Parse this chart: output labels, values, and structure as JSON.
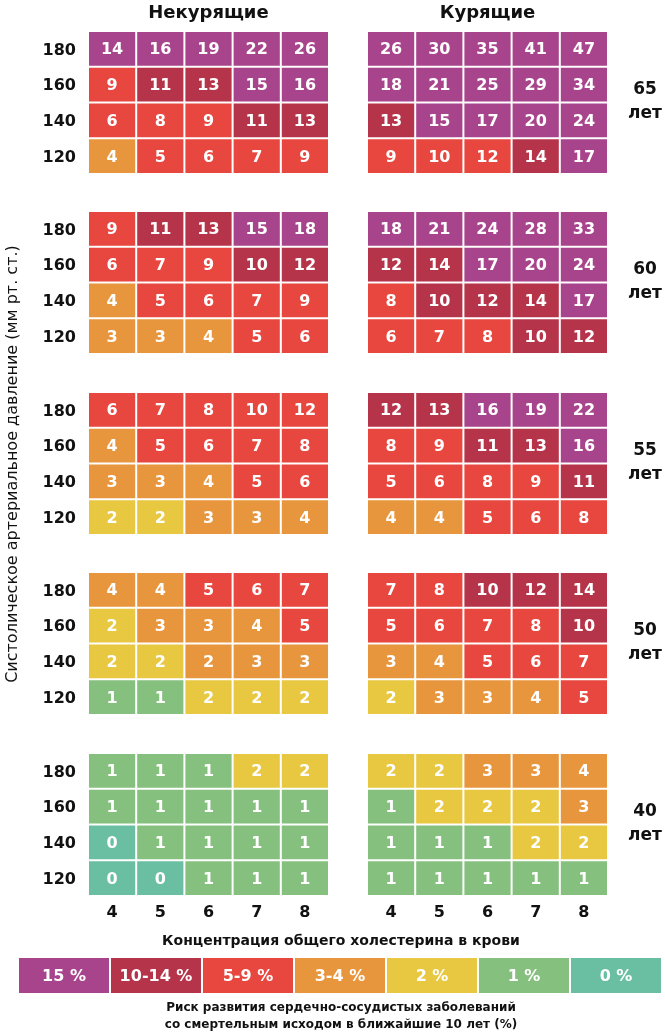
{
  "chart_data": [
    {
      "type": "heatmap",
      "title": "Некурящие",
      "categories": [
        "4",
        "5",
        "6",
        "7",
        "8"
      ],
      "y_categories": [
        "180",
        "160",
        "140",
        "120"
      ],
      "tick_labels": "y",
      "data_labels": true,
      "cells": [
        [
          14,
          16,
          19,
          22,
          26
        ],
        [
          9,
          11,
          13,
          15,
          16
        ],
        [
          6,
          8,
          9,
          11,
          13
        ],
        [
          4,
          5,
          6,
          7,
          9
        ]
      ],
      "colors": [
        [
          "#a8448c",
          "#a8448c",
          "#a8448c",
          "#a8448c",
          "#a8448c"
        ],
        [
          "#e8473f",
          "#b5344a",
          "#b5344a",
          "#a8448c",
          "#a8448c"
        ],
        [
          "#e8473f",
          "#e8473f",
          "#e8473f",
          "#b5344a",
          "#b5344a"
        ],
        [
          "#e8963e",
          "#e8473f",
          "#e8473f",
          "#e8473f",
          "#e8473f"
        ]
      ]
    },
    {
      "type": "heatmap",
      "title": "Курящие",
      "y2label": "65 лет",
      "categories": [
        "4",
        "5",
        "6",
        "7",
        "8"
      ],
      "y_categories": [
        "180",
        "160",
        "140",
        "120"
      ],
      "tick_labels": false,
      "data_labels": true,
      "cells": [
        [
          26,
          30,
          35,
          41,
          47
        ],
        [
          18,
          21,
          25,
          29,
          34
        ],
        [
          13,
          15,
          17,
          20,
          24
        ],
        [
          9,
          10,
          12,
          14,
          17
        ]
      ],
      "colors": [
        [
          "#a8448c",
          "#a8448c",
          "#a8448c",
          "#a8448c",
          "#a8448c"
        ],
        [
          "#a8448c",
          "#a8448c",
          "#a8448c",
          "#a8448c",
          "#a8448c"
        ],
        [
          "#b5344a",
          "#a8448c",
          "#a8448c",
          "#a8448c",
          "#a8448c"
        ],
        [
          "#e8473f",
          "#e8473f",
          "#e8473f",
          "#b5344a",
          "#a8448c"
        ]
      ]
    },
    {
      "type": "heatmap",
      "categories": [
        "4",
        "5",
        "6",
        "7",
        "8"
      ],
      "y_categories": [
        "180",
        "160",
        "140",
        "120"
      ],
      "tick_labels": "y",
      "data_labels": true,
      "cells": [
        [
          9,
          11,
          13,
          15,
          18
        ],
        [
          6,
          7,
          9,
          10,
          12
        ],
        [
          4,
          5,
          6,
          7,
          9
        ],
        [
          3,
          3,
          4,
          5,
          6
        ]
      ],
      "colors": [
        [
          "#e8473f",
          "#b5344a",
          "#b5344a",
          "#a8448c",
          "#a8448c"
        ],
        [
          "#e8473f",
          "#e8473f",
          "#e8473f",
          "#b5344a",
          "#b5344a"
        ],
        [
          "#e8963e",
          "#e8473f",
          "#e8473f",
          "#e8473f",
          "#e8473f"
        ],
        [
          "#e8963e",
          "#e8963e",
          "#e8963e",
          "#e8473f",
          "#e8473f"
        ]
      ]
    },
    {
      "type": "heatmap",
      "y2label": "60 лет",
      "categories": [
        "4",
        "5",
        "6",
        "7",
        "8"
      ],
      "y_categories": [
        "180",
        "160",
        "140",
        "120"
      ],
      "tick_labels": false,
      "data_labels": true,
      "cells": [
        [
          18,
          21,
          24,
          28,
          33
        ],
        [
          12,
          14,
          17,
          20,
          24
        ],
        [
          8,
          10,
          12,
          14,
          17
        ],
        [
          6,
          7,
          8,
          10,
          12
        ]
      ],
      "colors": [
        [
          "#a8448c",
          "#a8448c",
          "#a8448c",
          "#a8448c",
          "#a8448c"
        ],
        [
          "#b5344a",
          "#b5344a",
          "#a8448c",
          "#a8448c",
          "#a8448c"
        ],
        [
          "#e8473f",
          "#b5344a",
          "#b5344a",
          "#b5344a",
          "#a8448c"
        ],
        [
          "#e8473f",
          "#e8473f",
          "#e8473f",
          "#b5344a",
          "#b5344a"
        ]
      ]
    },
    {
      "type": "heatmap",
      "ylabel": "Систолическое артериальное давление (мм рт. ст.)",
      "categories": [
        "4",
        "5",
        "6",
        "7",
        "8"
      ],
      "y_categories": [
        "180",
        "160",
        "140",
        "120"
      ],
      "tick_labels": "y",
      "data_labels": true,
      "cells": [
        [
          6,
          7,
          8,
          10,
          12
        ],
        [
          4,
          5,
          6,
          7,
          8
        ],
        [
          3,
          3,
          4,
          5,
          6
        ],
        [
          2,
          2,
          3,
          3,
          4
        ]
      ],
      "colors": [
        [
          "#e8473f",
          "#e8473f",
          "#e8473f",
          "#e8473f",
          "#e8473f"
        ],
        [
          "#e8963e",
          "#e8473f",
          "#e8473f",
          "#e8473f",
          "#e8473f"
        ],
        [
          "#e8963e",
          "#e8963e",
          "#e8963e",
          "#e8473f",
          "#e8473f"
        ],
        [
          "#e8c840",
          "#e8c840",
          "#e8963e",
          "#e8963e",
          "#e8963e"
        ]
      ]
    },
    {
      "type": "heatmap",
      "y2label": "55 лет",
      "categories": [
        "4",
        "5",
        "6",
        "7",
        "8"
      ],
      "y_categories": [
        "180",
        "160",
        "140",
        "120"
      ],
      "tick_labels": false,
      "data_labels": true,
      "cells": [
        [
          12,
          13,
          16,
          19,
          22
        ],
        [
          8,
          9,
          11,
          13,
          16
        ],
        [
          5,
          6,
          8,
          9,
          11
        ],
        [
          4,
          4,
          5,
          6,
          8
        ]
      ],
      "colors": [
        [
          "#b5344a",
          "#b5344a",
          "#a8448c",
          "#a8448c",
          "#a8448c"
        ],
        [
          "#e8473f",
          "#e8473f",
          "#b5344a",
          "#b5344a",
          "#a8448c"
        ],
        [
          "#e8473f",
          "#e8473f",
          "#e8473f",
          "#e8473f",
          "#b5344a"
        ],
        [
          "#e8963e",
          "#e8963e",
          "#e8473f",
          "#e8473f",
          "#e8473f"
        ]
      ]
    },
    {
      "type": "heatmap",
      "categories": [
        "4",
        "5",
        "6",
        "7",
        "8"
      ],
      "y_categories": [
        "180",
        "160",
        "140",
        "120"
      ],
      "tick_labels": "y",
      "data_labels": true,
      "cells": [
        [
          4,
          4,
          5,
          6,
          7
        ],
        [
          2,
          3,
          3,
          4,
          5
        ],
        [
          2,
          2,
          2,
          3,
          3
        ],
        [
          1,
          1,
          2,
          2,
          2
        ]
      ],
      "colors": [
        [
          "#e8963e",
          "#e8963e",
          "#e8473f",
          "#e8473f",
          "#e8473f"
        ],
        [
          "#e8c840",
          "#e8963e",
          "#e8963e",
          "#e8963e",
          "#e8473f"
        ],
        [
          "#e8c840",
          "#e8c840",
          "#e8963e",
          "#e8963e",
          "#e8963e"
        ],
        [
          "#86c07f",
          "#86c07f",
          "#e8c840",
          "#e8c840",
          "#e8c840"
        ]
      ]
    },
    {
      "type": "heatmap",
      "y2label": "50 лет",
      "categories": [
        "4",
        "5",
        "6",
        "7",
        "8"
      ],
      "y_categories": [
        "180",
        "160",
        "140",
        "120"
      ],
      "tick_labels": false,
      "data_labels": true,
      "cells": [
        [
          7,
          8,
          10,
          12,
          14
        ],
        [
          5,
          6,
          7,
          8,
          10
        ],
        [
          3,
          4,
          5,
          6,
          7
        ],
        [
          2,
          3,
          3,
          4,
          5
        ]
      ],
      "colors": [
        [
          "#e8473f",
          "#e8473f",
          "#b5344a",
          "#b5344a",
          "#b5344a"
        ],
        [
          "#e8473f",
          "#e8473f",
          "#e8473f",
          "#e8473f",
          "#b5344a"
        ],
        [
          "#e8963e",
          "#e8963e",
          "#e8473f",
          "#e8473f",
          "#e8473f"
        ],
        [
          "#e8c840",
          "#e8963e",
          "#e8963e",
          "#e8963e",
          "#e8473f"
        ]
      ]
    },
    {
      "type": "heatmap",
      "xlabel": "Концентрация общего холестерина в крови",
      "categories": [
        "4",
        "5",
        "6",
        "7",
        "8"
      ],
      "y_categories": [
        "180",
        "160",
        "140",
        "120"
      ],
      "data_labels": true,
      "cells": [
        [
          1,
          1,
          1,
          2,
          2
        ],
        [
          1,
          1,
          1,
          1,
          1
        ],
        [
          0,
          1,
          1,
          1,
          1
        ],
        [
          0,
          0,
          1,
          1,
          1
        ]
      ],
      "colors": [
        [
          "#86c07f",
          "#86c07f",
          "#86c07f",
          "#e8c840",
          "#e8c840"
        ],
        [
          "#86c07f",
          "#86c07f",
          "#86c07f",
          "#86c07f",
          "#86c07f"
        ],
        [
          "#6abfa2",
          "#86c07f",
          "#86c07f",
          "#86c07f",
          "#86c07f"
        ],
        [
          "#6abfa2",
          "#6abfa2",
          "#86c07f",
          "#86c07f",
          "#86c07f"
        ]
      ]
    },
    {
      "type": "heatmap",
      "y2label": "40 лет",
      "categories": [
        "4",
        "5",
        "6",
        "7",
        "8"
      ],
      "y_categories": [
        "180",
        "160",
        "140",
        "120"
      ],
      "tick_labels": "x",
      "data_labels": true,
      "cells": [
        [
          2,
          2,
          3,
          3,
          4
        ],
        [
          1,
          2,
          2,
          2,
          3
        ],
        [
          1,
          1,
          1,
          2,
          2
        ],
        [
          1,
          1,
          1,
          1,
          1
        ]
      ],
      "colors": [
        [
          "#e8c840",
          "#e8c840",
          "#e8963e",
          "#e8963e",
          "#e8963e"
        ],
        [
          "#86c07f",
          "#e8c840",
          "#e8c840",
          "#e8c840",
          "#e8963e"
        ],
        [
          "#86c07f",
          "#86c07f",
          "#86c07f",
          "#e8c840",
          "#e8c840"
        ],
        [
          "#86c07f",
          "#86c07f",
          "#86c07f",
          "#86c07f",
          "#86c07f"
        ]
      ]
    },
    {
      "type": "other",
      "legend": "bottom",
      "legend_title": "Риск развития сердечно-сосудистых заболеваний со смертельным исходом в ближайшие 10 лет (%)",
      "series": [
        {
          "name": "15 %",
          "color": "#a8448c"
        },
        {
          "name": "10-14 %",
          "color": "#b5344a"
        },
        {
          "name": "5-9 %",
          "color": "#e8473f"
        },
        {
          "name": "3-4 %",
          "color": "#e8963e"
        },
        {
          "name": "2 %",
          "color": "#e8c840"
        },
        {
          "name": "1 %",
          "color": "#86c07f"
        },
        {
          "name": "0 %",
          "color": "#6abfa2"
        }
      ]
    }
  ]
}
